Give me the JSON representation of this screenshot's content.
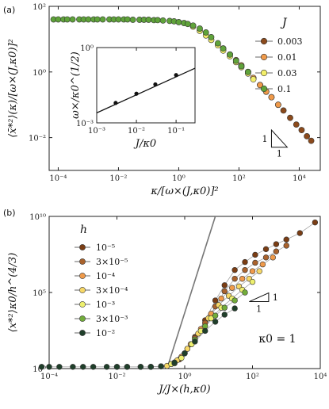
{
  "chart_data": [
    {
      "panel_label": "(a)",
      "type": "scatter",
      "xlabel": "κ/[ω×(J,κ0)]²",
      "ylabel": "⟨x̄*²⟩(κ)/[ω×(J,κ0)]²",
      "xscale": "log",
      "yscale": "log",
      "xlim": [
        5e-05,
        50000
      ],
      "ylim": [
        0.001,
        100
      ],
      "x_ticks": [
        0.0001,
        0.01,
        1,
        100,
        10000
      ],
      "x_tick_labels": [
        "10⁻⁴",
        "10⁻²",
        "10⁰",
        "10²",
        "10⁴"
      ],
      "y_ticks": [
        0.01,
        1,
        100
      ],
      "y_tick_labels": [
        "10⁻²",
        "10⁰",
        "10²"
      ],
      "legend": {
        "title": "J",
        "position": "right",
        "entries": [
          {
            "label": "0.003",
            "color": "#8b4a1c"
          },
          {
            "label": "0.01",
            "color": "#ef9a4a"
          },
          {
            "label": "0.03",
            "color": "#f3ef6a"
          },
          {
            "label": "0.1",
            "color": "#5fa33a"
          }
        ]
      },
      "slope_triangle": {
        "vertical": "1",
        "horizontal": "1"
      },
      "series": [
        {
          "name": "0.003",
          "color": "#8b4a1c",
          "x": [
            200,
            300,
            500,
            800,
            1200,
            2000,
            3000,
            5000,
            8000,
            12000,
            18000,
            25000
          ],
          "y": [
            1.0,
            0.65,
            0.4,
            0.25,
            0.17,
            0.1,
            0.067,
            0.04,
            0.025,
            0.017,
            0.011,
            0.008
          ]
        },
        {
          "name": "0.01",
          "color": "#ef9a4a",
          "x": [
            30,
            50,
            80,
            120,
            200,
            300,
            500,
            800,
            1200,
            2000
          ],
          "y": [
            5.2,
            3.4,
            2.3,
            1.6,
            1.0,
            0.66,
            0.4,
            0.25,
            0.17,
            0.1
          ]
        },
        {
          "name": "0.03",
          "color": "#f3ef6a",
          "x": [
            3,
            5,
            8,
            12,
            20,
            30,
            50,
            80,
            120,
            200,
            300
          ],
          "y": [
            24,
            18,
            13,
            9.5,
            6.5,
            4.5,
            3.0,
            2.0,
            1.4,
            0.9,
            0.6
          ]
        },
        {
          "name": "0.1",
          "color": "#5fa33a",
          "x": [
            7e-05,
            0.0001,
            0.00015,
            0.0002,
            0.0003,
            0.0005,
            0.0007,
            0.001,
            0.0015,
            0.002,
            0.003,
            0.005,
            0.007,
            0.01,
            0.015,
            0.02,
            0.03,
            0.05,
            0.07,
            0.1,
            0.15,
            0.2,
            0.3,
            0.5,
            0.7,
            1,
            1.5,
            2,
            3,
            5,
            8,
            12,
            20,
            30,
            50,
            80,
            120,
            200
          ],
          "y": [
            40,
            40,
            40,
            40,
            40,
            40,
            40,
            40,
            40,
            40,
            40,
            40,
            40,
            40,
            40,
            40,
            39,
            39,
            39,
            39,
            38,
            38,
            37,
            36,
            35,
            33,
            31,
            29,
            26,
            21,
            16,
            11.5,
            7.5,
            5.2,
            3.4,
            2.2,
            1.5,
            1.0
          ]
        }
      ],
      "inset": {
        "type": "line",
        "xlabel": "J/κ0",
        "ylabel": "ω×/κ0^(1/2)",
        "xscale": "log",
        "yscale": "log",
        "xlim": [
          0.001,
          0.3
        ],
        "ylim": [
          0.001,
          1
        ],
        "x_ticks": [
          0.001,
          0.01,
          0.1
        ],
        "x_tick_labels": [
          "10⁻³",
          "10⁻²",
          "10⁻¹"
        ],
        "y_ticks": [
          0.001,
          1
        ],
        "y_tick_labels": [
          "10⁻³",
          "10⁰"
        ],
        "line": {
          "x": [
            0.001,
            0.3
          ],
          "y": [
            0.0025,
            0.15
          ]
        },
        "points": {
          "x": [
            0.003,
            0.01,
            0.03,
            0.1
          ],
          "y": [
            0.0062,
            0.0145,
            0.034,
            0.08
          ]
        }
      }
    },
    {
      "panel_label": "(b)",
      "type": "scatter",
      "xlabel": "J/J×(h,κ0)",
      "ylabel": "⟨x*²⟩κ0/h^(4/3)",
      "xscale": "log",
      "yscale": "log",
      "xlim": [
        0.0001,
        10000
      ],
      "ylim": [
        1,
        10000000000
      ],
      "x_ticks": [
        0.0001,
        0.01,
        1,
        100,
        10000
      ],
      "x_tick_labels": [
        "10⁻⁴",
        "10⁻²",
        "10⁰",
        "10²",
        "10⁴"
      ],
      "y_ticks": [
        1,
        100000,
        10000000000
      ],
      "y_tick_labels": [
        "10⁰",
        "10⁵",
        "10¹⁰"
      ],
      "annotation": "κ0 = 1",
      "slope_triangle": {
        "vertical": "1",
        "horizontal": "1"
      },
      "legend": {
        "title": "h",
        "position": "left",
        "entries": [
          {
            "label": "10⁻⁵",
            "color": "#7a3d14"
          },
          {
            "label": "3×10⁻⁵",
            "color": "#a9622c"
          },
          {
            "label": "10⁻⁴",
            "color": "#ef9a4a"
          },
          {
            "label": "3×10⁻⁴",
            "color": "#f7d867"
          },
          {
            "label": "10⁻³",
            "color": "#eef06e"
          },
          {
            "label": "3×10⁻³",
            "color": "#72ac3a"
          },
          {
            "label": "10⁻²",
            "color": "#1f3f2a"
          }
        ]
      },
      "guide_lines": [
        {
          "x": [
            0.3,
            8
          ],
          "y": [
            1,
            10000000000
          ]
        }
      ],
      "series": [
        {
          "name": "10⁻⁵",
          "color": "#7a3d14",
          "x": [
            0.7,
            1.2,
            2,
            4,
            8,
            15,
            30,
            60,
            120,
            250,
            500,
            1000,
            2500,
            7000
          ],
          "y": [
            4,
            20,
            120,
            1500,
            30000,
            300000,
            3000000,
            10000000,
            30000000,
            70000000,
            150000000,
            300000000,
            800000000,
            4000000000
          ]
        },
        {
          "name": "3×10⁻⁵",
          "color": "#a9622c",
          "x": [
            0.5,
            1,
            2,
            4,
            8,
            15,
            30,
            60,
            120,
            250,
            500,
            1000
          ],
          "y": [
            2.5,
            10,
            100,
            1000,
            12000,
            120000,
            800000,
            3000000,
            9000000,
            20000000,
            50000000,
            120000000
          ]
        },
        {
          "name": "10⁻⁴",
          "color": "#ef9a4a",
          "x": [
            0.4,
            0.8,
            1.5,
            3,
            6,
            12,
            25,
            50,
            100,
            200,
            400
          ],
          "y": [
            2,
            6,
            40,
            400,
            4000,
            40000,
            200000,
            800000,
            2500000,
            7000000,
            20000000
          ]
        },
        {
          "name": "3×10⁻⁴",
          "color": "#f7d867",
          "x": [
            0.3,
            0.6,
            1.2,
            2.5,
            5,
            10,
            20,
            40,
            80,
            160
          ],
          "y": [
            1.5,
            3.5,
            20,
            200,
            2000,
            15000,
            60000,
            250000,
            800000,
            2500000
          ]
        },
        {
          "name": "10⁻³",
          "color": "#eef06e",
          "x": [
            0.1,
            0.2,
            0.4,
            0.8,
            1.6,
            3,
            6,
            12,
            25,
            50,
            100
          ],
          "y": [
            1.3,
            1.4,
            2,
            5,
            40,
            300,
            2000,
            10000,
            40000,
            150000,
            500000
          ]
        },
        {
          "name": "3×10⁻³",
          "color": "#72ac3a",
          "x": [
            0.01,
            0.02,
            0.05,
            0.1,
            0.2,
            0.5,
            1,
            2,
            4,
            8,
            15,
            30,
            60
          ],
          "y": [
            1.3,
            1.3,
            1.3,
            1.3,
            1.4,
            2.2,
            10,
            80,
            600,
            3000,
            10000,
            30000,
            100000
          ]
        },
        {
          "name": "10⁻²",
          "color": "#1f3f2a",
          "x": [
            6e-05,
            0.0001,
            0.0002,
            0.0005,
            0.001,
            0.002,
            0.005,
            0.01,
            0.02,
            0.05,
            0.1,
            0.2,
            0.5,
            1,
            2,
            4,
            8,
            15,
            30
          ],
          "y": [
            1.3,
            1.3,
            1.3,
            1.3,
            1.3,
            1.3,
            1.3,
            1.3,
            1.3,
            1.3,
            1.3,
            1.4,
            2.5,
            10,
            60,
            300,
            1200,
            3500,
            9000
          ]
        }
      ]
    }
  ]
}
